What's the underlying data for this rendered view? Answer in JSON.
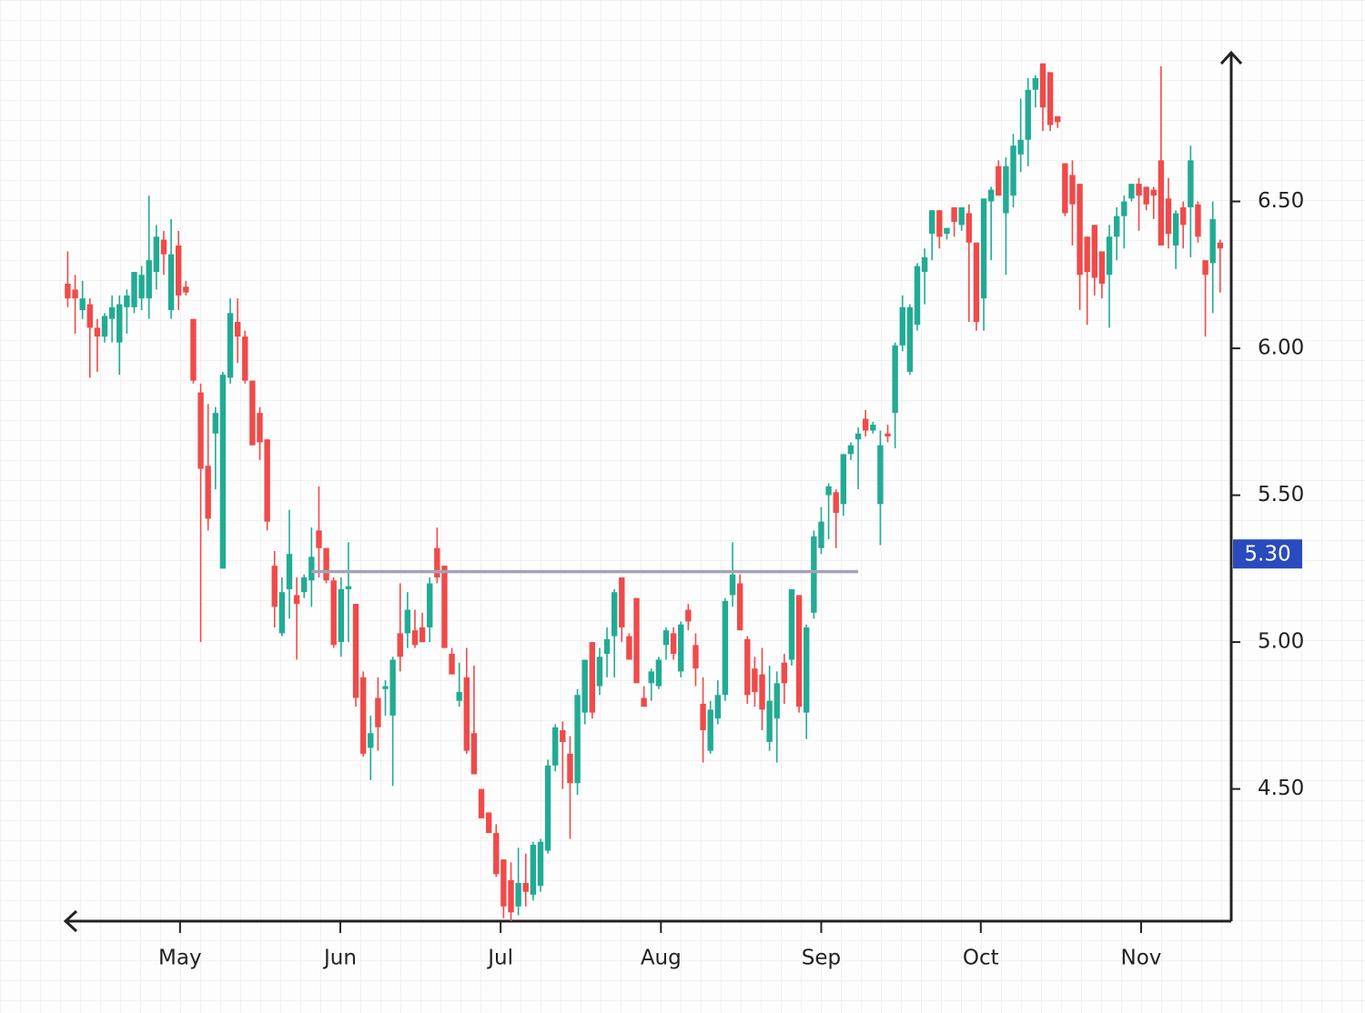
{
  "chart_data": {
    "type": "candlestick",
    "x": [
      0,
      1,
      2,
      3,
      4,
      5,
      6,
      7,
      8,
      9,
      10,
      11,
      12,
      13,
      14,
      15,
      16,
      17,
      18,
      19,
      20,
      21,
      22,
      23,
      24,
      25,
      26,
      27,
      28,
      29,
      30,
      31,
      32,
      33,
      34,
      35,
      36,
      37,
      38,
      39,
      40,
      41,
      42,
      43,
      44,
      45,
      46,
      47,
      48,
      49,
      50,
      51,
      52,
      53,
      54,
      55,
      56,
      57,
      58,
      59,
      60,
      61,
      62,
      63,
      64,
      65,
      66,
      67,
      68,
      69,
      70,
      71,
      72,
      73,
      74,
      75,
      76,
      77,
      78,
      79,
      80,
      81,
      82,
      83,
      84,
      85,
      86,
      87,
      88,
      89,
      90,
      91,
      92,
      93,
      94,
      95,
      96,
      97,
      98,
      99,
      100,
      101,
      102,
      103,
      104,
      105,
      106,
      107,
      108,
      109,
      110,
      111,
      112,
      113,
      114,
      115,
      116,
      117,
      118,
      119,
      120,
      121,
      122,
      123,
      124,
      125,
      126,
      127,
      128,
      129,
      130,
      131,
      132,
      133,
      134,
      135,
      136,
      137,
      138,
      139,
      140,
      141,
      142,
      143,
      144,
      145,
      146,
      147,
      148,
      149,
      150,
      151,
      152,
      153,
      154,
      155,
      156
    ],
    "open": [
      6.22,
      6.2,
      6.13,
      6.15,
      6.07,
      6.04,
      6.1,
      6.02,
      6.14,
      6.14,
      6.17,
      6.17,
      6.26,
      6.37,
      6.13,
      6.35,
      6.21,
      6.1,
      5.85,
      5.6,
      5.71,
      5.25,
      5.9,
      6.09,
      6.04,
      5.89,
      5.78,
      5.69,
      5.26,
      5.03,
      5.18,
      5.16,
      5.17,
      5.21,
      5.38,
      5.32,
      5.21,
      5.0,
      5.18,
      5.13,
      4.88,
      4.64,
      4.81,
      4.84,
      4.75,
      5.03,
      5.03,
      5.04,
      5.05,
      5.05,
      5.32,
      5.26,
      4.96,
      4.8,
      4.88,
      4.69,
      4.5,
      4.42,
      4.35,
      4.26,
      4.19,
      4.1,
      4.18,
      4.14,
      4.17,
      4.29,
      4.58,
      4.7,
      4.62,
      4.52,
      4.76,
      5.0,
      4.85,
      4.96,
      5.02,
      5.22,
      5.02,
      5.15,
      4.81,
      4.86,
      4.85,
      4.99,
      5.03,
      4.9,
      5.11,
      4.99,
      4.79,
      4.63,
      4.74,
      4.82,
      5.16,
      5.2,
      5.01,
      4.91,
      4.89,
      4.66,
      4.74,
      4.93,
      4.94,
      5.16,
      4.76,
      5.1,
      5.32,
      5.5,
      5.51,
      5.47,
      5.64,
      5.69,
      5.76,
      5.72,
      5.47,
      5.71,
      5.78,
      6.01,
      5.92,
      6.08,
      6.26,
      6.39,
      6.47,
      6.39,
      6.48,
      6.42,
      6.46,
      6.36,
      6.17,
      6.5,
      6.62,
      6.46,
      6.52,
      6.66,
      6.71,
      6.88,
      6.97,
      6.94,
      6.79,
      6.63,
      6.59,
      6.56,
      6.38,
      6.42,
      6.33,
      6.25,
      6.38,
      6.45,
      6.51,
      6.56,
      6.55,
      6.54,
      6.64,
      6.51,
      6.35,
      6.48,
      6.48,
      6.49,
      6.3,
      6.29,
      6.36
    ],
    "high": [
      6.33,
      6.25,
      6.23,
      6.17,
      6.1,
      6.12,
      6.18,
      6.18,
      6.2,
      6.26,
      6.28,
      6.52,
      6.42,
      6.4,
      6.44,
      6.4,
      6.23,
      6.1,
      5.88,
      5.81,
      5.8,
      5.92,
      6.17,
      6.17,
      6.06,
      5.89,
      5.8,
      5.69,
      5.31,
      5.22,
      5.45,
      5.22,
      5.23,
      5.39,
      5.53,
      5.32,
      5.22,
      5.22,
      5.34,
      5.13,
      4.9,
      4.75,
      4.88,
      4.87,
      4.95,
      5.2,
      5.17,
      5.11,
      5.1,
      5.22,
      5.39,
      5.26,
      4.98,
      4.93,
      4.98,
      4.92,
      4.5,
      4.42,
      4.38,
      4.26,
      4.25,
      4.3,
      4.28,
      4.32,
      4.33,
      4.6,
      4.72,
      4.73,
      4.68,
      4.84,
      4.94,
      5.0,
      4.98,
      5.05,
      5.18,
      5.22,
      5.03,
      5.15,
      4.85,
      4.91,
      4.95,
      5.05,
      5.05,
      5.07,
      5.13,
      5.03,
      4.88,
      4.8,
      4.87,
      5.15,
      5.34,
      5.23,
      5.02,
      4.95,
      4.98,
      4.92,
      4.9,
      4.96,
      5.18,
      5.16,
      5.06,
      5.38,
      5.46,
      5.54,
      5.52,
      5.64,
      5.68,
      5.73,
      5.79,
      5.75,
      5.72,
      5.74,
      6.02,
      6.18,
      6.15,
      6.29,
      6.34,
      6.47,
      6.47,
      6.41,
      6.48,
      6.48,
      6.49,
      6.36,
      6.51,
      6.55,
      6.64,
      6.65,
      6.73,
      6.85,
      6.92,
      6.93,
      6.97,
      6.94,
      6.79,
      6.63,
      6.64,
      6.56,
      6.38,
      6.42,
      6.33,
      6.42,
      6.48,
      6.52,
      6.56,
      6.58,
      6.55,
      6.55,
      6.96,
      6.58,
      6.47,
      6.5,
      6.69,
      6.5,
      6.3,
      6.5,
      6.37
    ],
    "low": [
      6.14,
      6.05,
      6.1,
      5.9,
      5.92,
      6.02,
      6.02,
      5.91,
      6.05,
      6.12,
      6.13,
      6.1,
      6.2,
      6.25,
      6.1,
      6.13,
      6.18,
      5.88,
      5.0,
      5.38,
      5.52,
      5.25,
      5.88,
      5.95,
      5.88,
      5.67,
      5.62,
      5.38,
      5.05,
      5.02,
      5.08,
      4.94,
      5.15,
      5.12,
      5.22,
      5.2,
      4.98,
      4.95,
      5.0,
      4.78,
      4.61,
      4.53,
      4.63,
      4.75,
      4.51,
      4.9,
      4.98,
      4.98,
      5.0,
      5.0,
      5.2,
      4.98,
      4.89,
      4.78,
      4.62,
      4.55,
      4.4,
      4.35,
      4.2,
      4.06,
      4.05,
      4.07,
      4.1,
      4.12,
      4.15,
      4.28,
      4.56,
      4.5,
      4.33,
      4.48,
      4.72,
      4.74,
      4.82,
      4.88,
      4.88,
      5.0,
      4.94,
      4.86,
      4.78,
      4.8,
      4.84,
      4.94,
      4.94,
      4.88,
      5.04,
      4.85,
      4.59,
      4.62,
      4.72,
      4.8,
      5.12,
      5.04,
      4.79,
      4.78,
      4.7,
      4.63,
      4.59,
      4.79,
      4.92,
      4.76,
      4.67,
      5.08,
      5.3,
      5.35,
      5.32,
      5.43,
      5.62,
      5.52,
      5.7,
      5.71,
      5.33,
      5.68,
      5.66,
      5.99,
      5.91,
      6.06,
      6.15,
      6.3,
      6.34,
      6.37,
      6.38,
      6.4,
      6.09,
      6.06,
      6.06,
      6.3,
      6.52,
      6.25,
      6.48,
      6.6,
      6.62,
      6.82,
      6.74,
      6.74,
      6.75,
      6.45,
      6.35,
      6.13,
      6.08,
      6.18,
      6.17,
      6.07,
      6.3,
      6.34,
      6.5,
      6.4,
      6.47,
      6.44,
      6.35,
      6.34,
      6.27,
      6.34,
      6.31,
      6.36,
      6.04,
      6.12,
      6.19
    ],
    "close": [
      6.17,
      6.17,
      6.17,
      6.07,
      6.04,
      6.11,
      6.14,
      6.15,
      6.18,
      6.26,
      6.25,
      6.3,
      6.38,
      6.32,
      6.32,
      6.18,
      6.19,
      5.89,
      5.59,
      5.42,
      5.78,
      5.91,
      6.12,
      6.04,
      5.89,
      5.67,
      5.68,
      5.41,
      5.12,
      5.17,
      5.3,
      5.13,
      5.22,
      5.29,
      5.32,
      5.21,
      4.99,
      5.18,
      5.19,
      4.81,
      4.62,
      4.69,
      4.71,
      4.85,
      4.94,
      4.95,
      5.11,
      4.99,
      5.0,
      5.2,
      5.22,
      4.98,
      4.89,
      4.83,
      4.63,
      4.55,
      4.4,
      4.35,
      4.21,
      4.1,
      4.08,
      4.18,
      4.15,
      4.31,
      4.32,
      4.58,
      4.71,
      4.66,
      4.52,
      4.82,
      4.94,
      4.76,
      4.95,
      5.01,
      5.17,
      5.05,
      4.94,
      4.86,
      4.78,
      4.9,
      4.94,
      5.04,
      4.96,
      5.06,
      5.07,
      4.91,
      4.7,
      4.77,
      4.82,
      5.14,
      5.23,
      5.04,
      4.82,
      4.83,
      4.77,
      4.8,
      4.86,
      4.86,
      5.18,
      4.78,
      5.05,
      5.36,
      5.41,
      5.53,
      5.44,
      5.64,
      5.67,
      5.71,
      5.72,
      5.74,
      5.67,
      5.7,
      6.01,
      6.14,
      6.14,
      6.28,
      6.31,
      6.47,
      6.38,
      6.41,
      6.43,
      6.48,
      6.36,
      6.09,
      6.51,
      6.54,
      6.52,
      6.62,
      6.69,
      6.71,
      6.88,
      6.92,
      6.82,
      6.76,
      6.77,
      6.46,
      6.49,
      6.25,
      6.26,
      6.24,
      6.22,
      6.38,
      6.45,
      6.5,
      6.56,
      6.52,
      6.49,
      6.52,
      6.35,
      6.39,
      6.46,
      6.42,
      6.64,
      6.38,
      6.25,
      6.44,
      6.34
    ],
    "up_color": "#22ab94",
    "down_color": "#f04a4a",
    "xlim": [
      -0.3,
      157.5
    ],
    "xticks": [
      {
        "value": 15.2,
        "label": "May"
      },
      {
        "value": 36.9,
        "label": "Jun"
      },
      {
        "value": 58.6,
        "label": "Jul"
      },
      {
        "value": 80.3,
        "label": "Aug"
      },
      {
        "value": 102,
        "label": "Sep"
      },
      {
        "value": 123.6,
        "label": "Oct"
      },
      {
        "value": 145.3,
        "label": "Nov"
      }
    ],
    "ylim": [
      4.05,
      7.0
    ],
    "yticks": [
      {
        "value": 4.5,
        "label": "4.50"
      },
      {
        "value": 5,
        "label": "5.00"
      },
      {
        "value": 5.5,
        "label": "5.50"
      },
      {
        "value": 6,
        "label": "6.00"
      },
      {
        "value": 6.5,
        "label": "6.50"
      }
    ],
    "level_line": {
      "value": 5.24,
      "x": [
        33,
        107
      ],
      "color": "#a3a3b8"
    },
    "price_tag": {
      "value": 5.3,
      "label": "5.30",
      "color": "#2a4bbd"
    }
  }
}
